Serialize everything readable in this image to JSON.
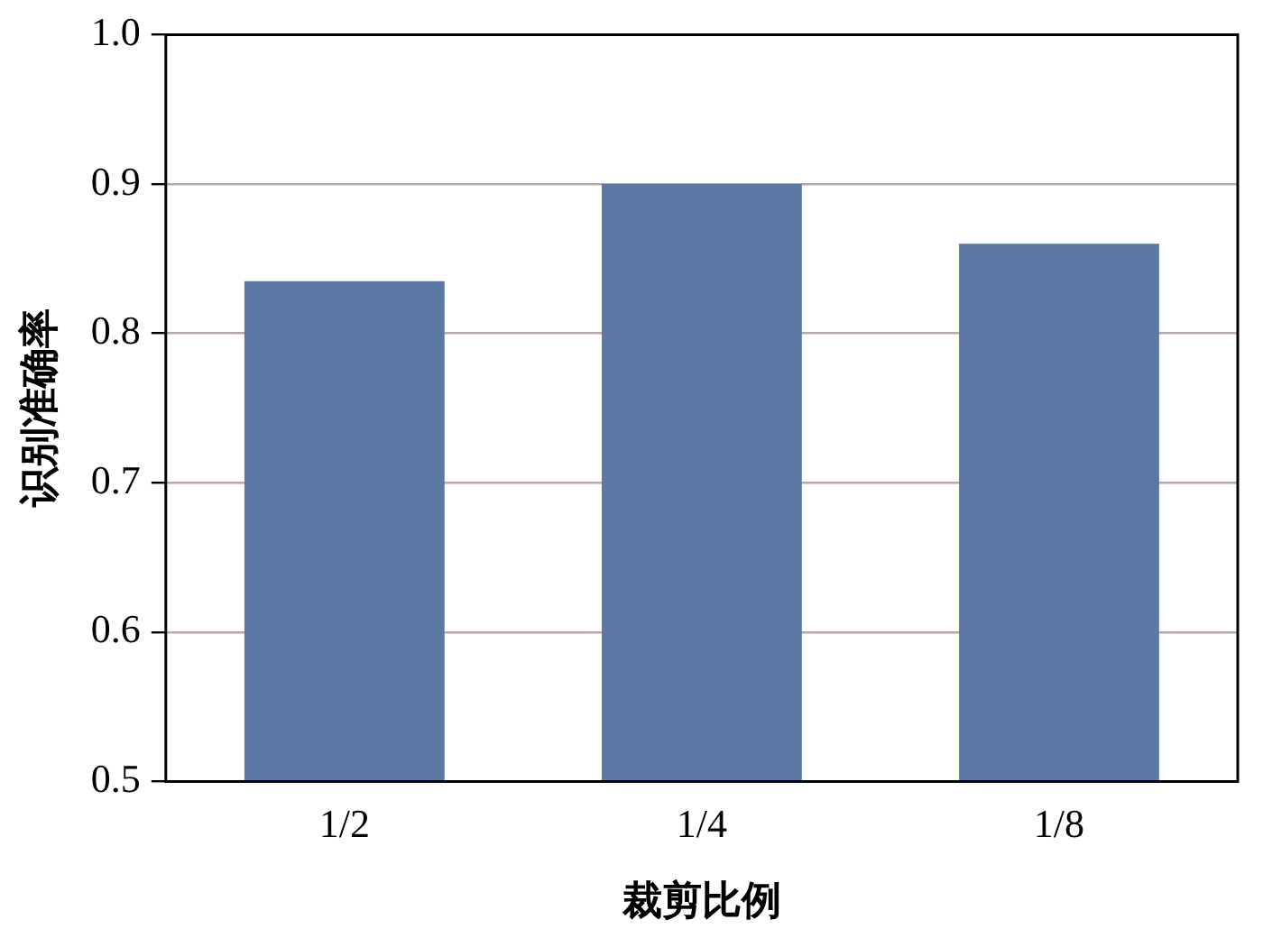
{
  "chart_data": {
    "type": "bar",
    "xlabel": "裁剪比例",
    "ylabel": "识别准确率",
    "categories": [
      "1/2",
      "1/4",
      "1/8"
    ],
    "values": [
      0.835,
      0.9,
      0.86
    ],
    "color": "#5b77a3",
    "ylim": [
      0.5,
      1.0
    ],
    "yticks": [
      {
        "value": 0.5,
        "label": "0.5"
      },
      {
        "value": 0.6,
        "label": "0.6"
      },
      {
        "value": 0.7,
        "label": "0.7"
      },
      {
        "value": 0.8,
        "label": "0.8"
      },
      {
        "value": 0.9,
        "label": "0.9"
      },
      {
        "value": 1.0,
        "label": "1.0"
      }
    ],
    "grid": "y",
    "legend": false
  }
}
